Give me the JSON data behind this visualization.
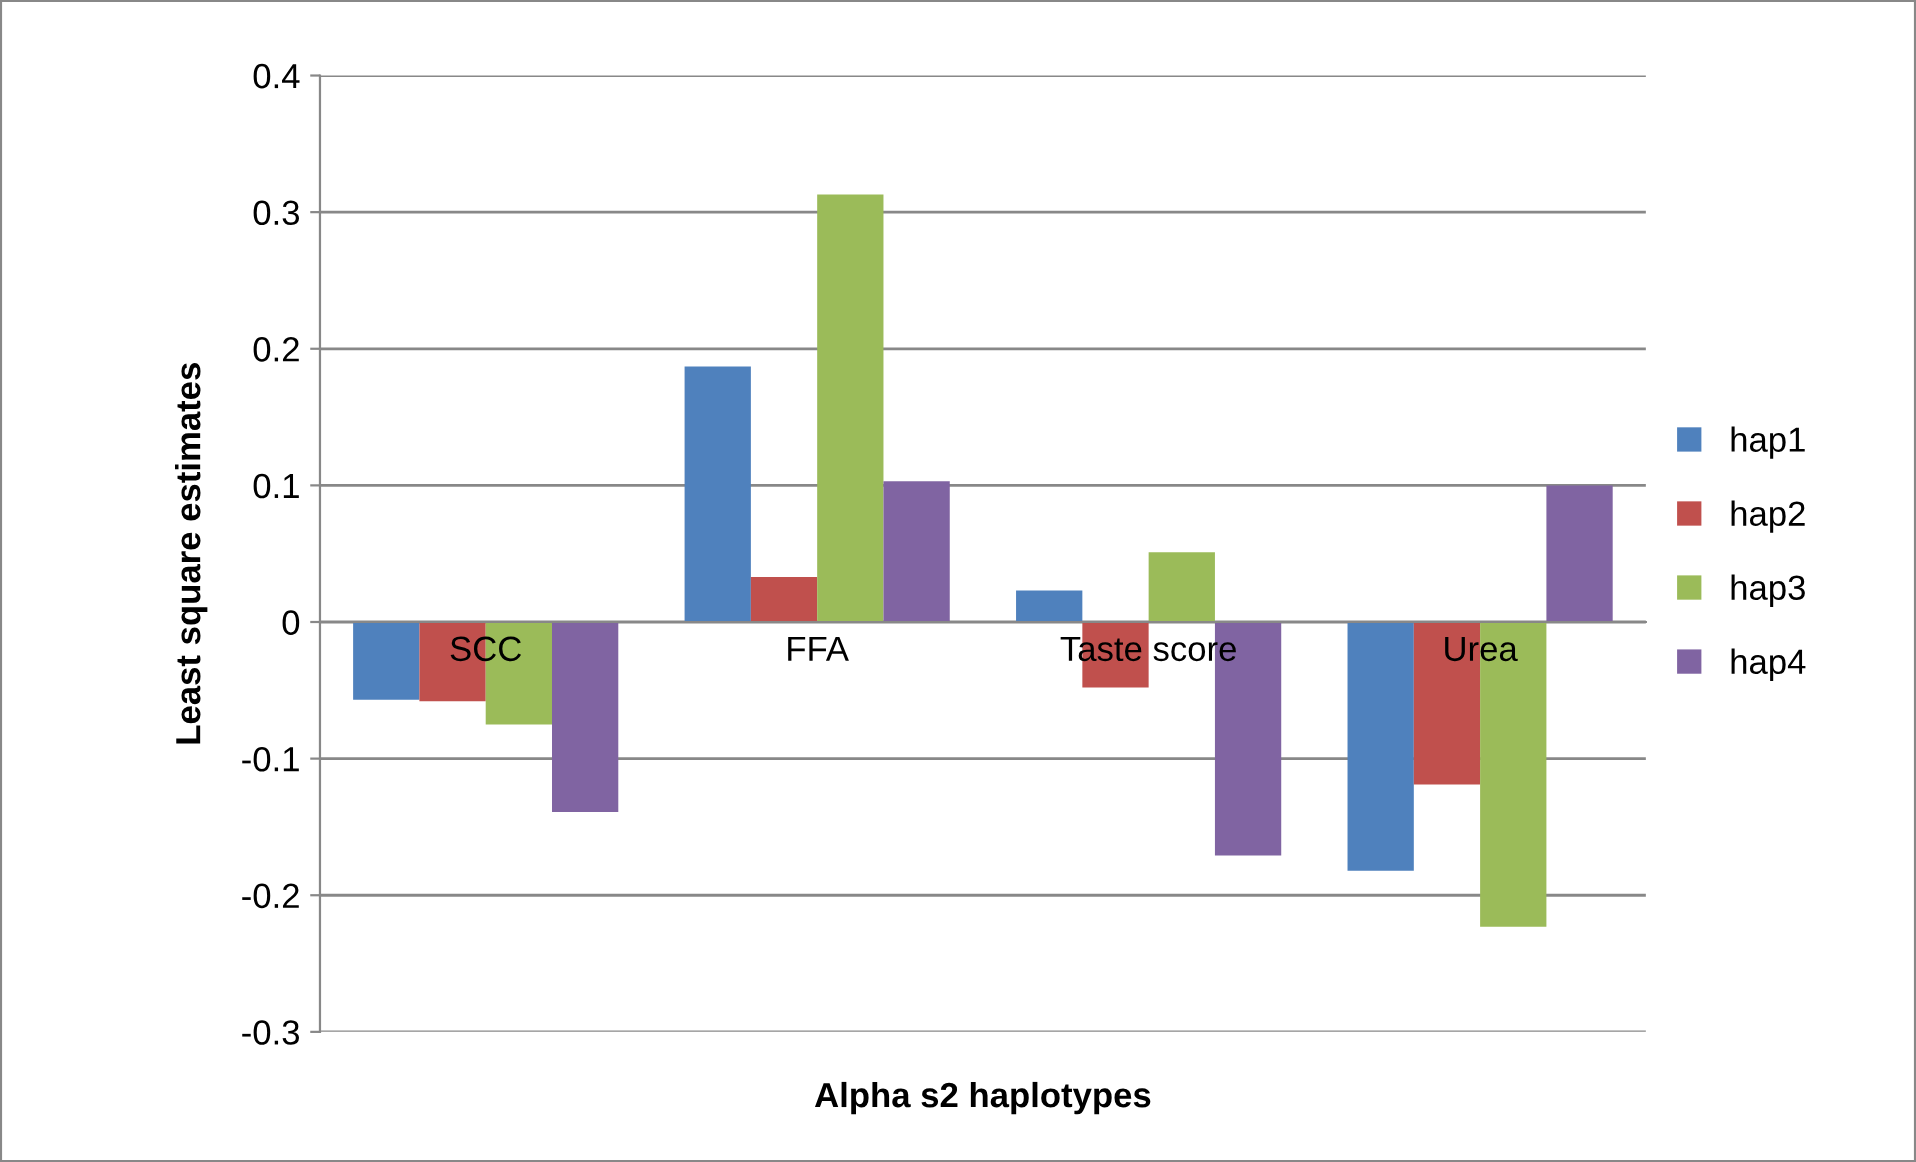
{
  "chart_data": {
    "type": "bar",
    "xlabel": "Alpha s2 haplotypes",
    "ylabel": "Least square estimates",
    "categories": [
      "SCC",
      "FFA",
      "Taste score",
      "Urea"
    ],
    "series": [
      {
        "name": "hap1",
        "color": "#4f81bd",
        "values": [
          -0.057,
          0.187,
          0.023,
          -0.182
        ]
      },
      {
        "name": "hap2",
        "color": "#c0504d",
        "values": [
          -0.058,
          0.033,
          -0.048,
          -0.119
        ]
      },
      {
        "name": "hap3",
        "color": "#9bbb59",
        "values": [
          -0.075,
          0.313,
          0.051,
          -0.223
        ]
      },
      {
        "name": "hap4",
        "color": "#8064a2",
        "values": [
          -0.139,
          0.103,
          -0.171,
          0.1
        ]
      }
    ],
    "ylim": [
      -0.3,
      0.4
    ],
    "yticks": [
      -0.3,
      -0.2,
      -0.1,
      0,
      0.1,
      0.2,
      0.3,
      0.4
    ],
    "grid": "y",
    "legend": "right"
  }
}
